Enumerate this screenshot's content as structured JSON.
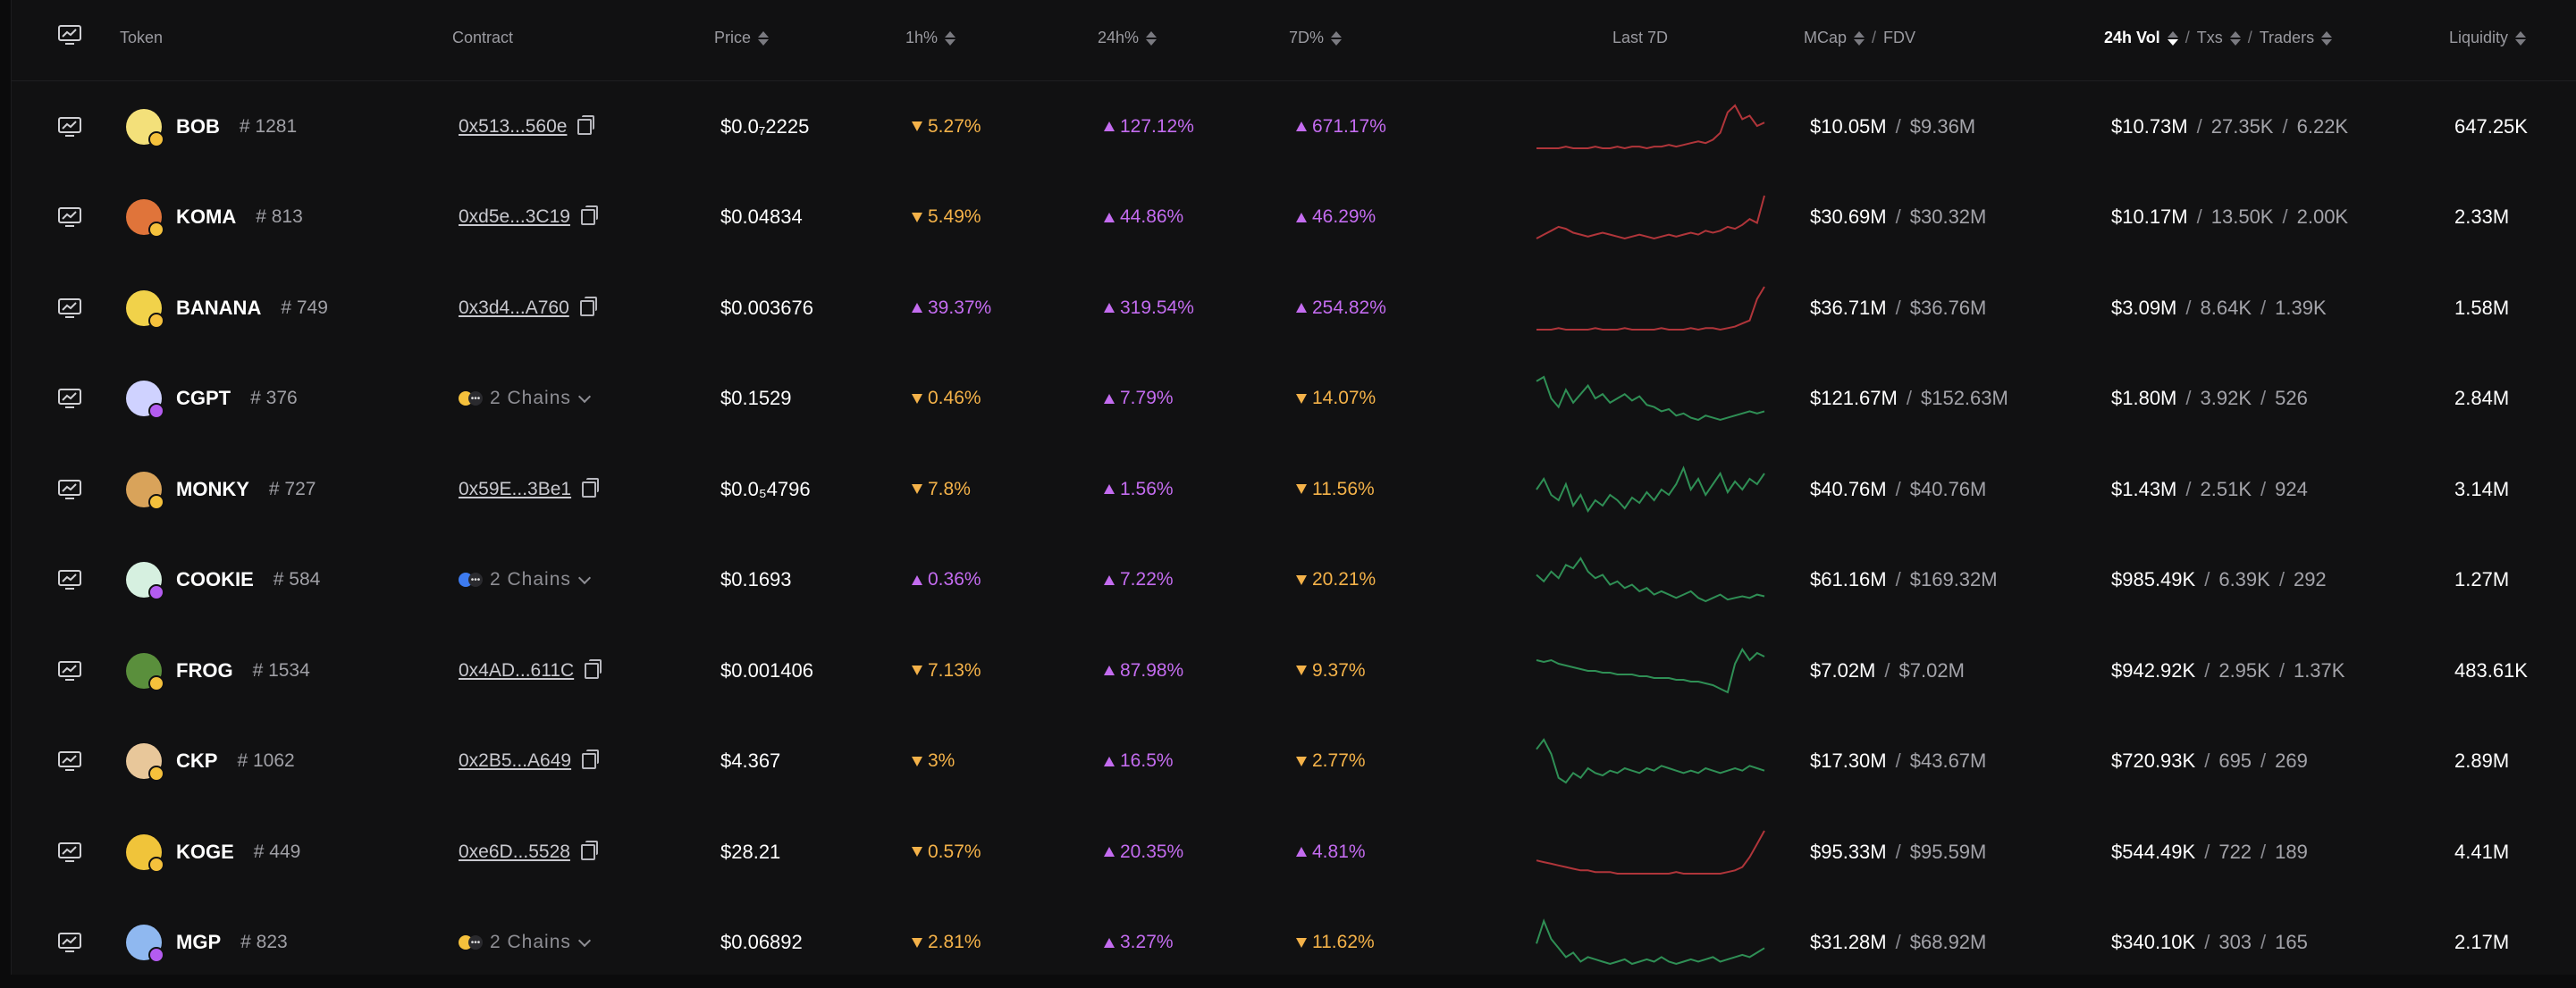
{
  "header": {
    "token": "Token",
    "contract": "Contract",
    "price": "Price",
    "h1": "1h%",
    "h24": "24h%",
    "d7": "7D%",
    "last7d": "Last 7D",
    "mcap": "MCap",
    "fdv": "FDV",
    "vol": "24h Vol",
    "txs": "Txs",
    "traders": "Traders",
    "liquidity": "Liquidity"
  },
  "colors": {
    "up": "#c46cf0",
    "down": "#f4b249",
    "spark_up": "#2f8f55",
    "spark_down": "#b0353a"
  },
  "tokens": [
    {
      "symbol": "BOB",
      "rank": "# 1281",
      "contract": "0x513...560e",
      "price": "$0.0₇2225",
      "h1": "5.27%",
      "h1_dir": "dn",
      "h24": "127.12%",
      "h24_dir": "up",
      "d7": "671.17%",
      "d7_dir": "up",
      "mcap": "$10.05M",
      "fdv": "$9.36M",
      "vol": "$10.73M",
      "txs": "27.35K",
      "traders": "6.22K",
      "liquidity": "647.25K",
      "avatar_color": "#f3e07a",
      "badge_color": "#f5c13c",
      "spark_color": "spark_down",
      "spark": [
        5,
        5,
        5,
        5,
        6,
        5,
        5,
        5,
        6,
        5,
        5,
        6,
        5,
        6,
        6,
        5,
        6,
        6,
        7,
        6,
        7,
        8,
        9,
        8,
        10,
        14,
        26,
        30,
        22,
        24,
        18,
        20
      ]
    },
    {
      "symbol": "KOMA",
      "rank": "# 813",
      "contract": "0xd5e...3C19",
      "price": "$0.04834",
      "h1": "5.49%",
      "h1_dir": "dn",
      "h24": "44.86%",
      "h24_dir": "up",
      "d7": "46.29%",
      "d7_dir": "up",
      "mcap": "$30.69M",
      "fdv": "$30.32M",
      "vol": "$10.17M",
      "txs": "13.50K",
      "traders": "2.00K",
      "liquidity": "2.33M",
      "avatar_color": "#e0743a",
      "badge_color": "#f5c13c",
      "spark_color": "spark_down",
      "spark": [
        8,
        10,
        12,
        14,
        13,
        11,
        10,
        9,
        10,
        11,
        10,
        9,
        8,
        9,
        10,
        9,
        8,
        9,
        10,
        9,
        10,
        11,
        10,
        12,
        11,
        12,
        14,
        13,
        15,
        18,
        16,
        30
      ]
    },
    {
      "symbol": "BANANA",
      "rank": "# 749",
      "contract": "0x3d4...A760",
      "price": "$0.003676",
      "h1": "39.37%",
      "h1_dir": "up",
      "h24": "319.54%",
      "h24_dir": "up",
      "d7": "254.82%",
      "d7_dir": "up",
      "mcap": "$36.71M",
      "fdv": "$36.76M",
      "vol": "$3.09M",
      "txs": "8.64K",
      "traders": "1.39K",
      "liquidity": "1.58M",
      "avatar_color": "#f1d24a",
      "badge_color": "#f5c13c",
      "spark_color": "spark_down",
      "spark": [
        4,
        4,
        4,
        5,
        4,
        4,
        4,
        4,
        5,
        4,
        4,
        4,
        5,
        4,
        4,
        4,
        4,
        5,
        4,
        4,
        4,
        5,
        4,
        5,
        5,
        4,
        5,
        6,
        8,
        10,
        24,
        32
      ]
    },
    {
      "symbol": "CGPT",
      "rank": "# 376",
      "contract": "",
      "chains": "2 Chains",
      "chain_color": "#f5c13c",
      "price": "$0.1529",
      "h1": "0.46%",
      "h1_dir": "dn",
      "h24": "7.79%",
      "h24_dir": "up",
      "d7": "14.07%",
      "d7_dir": "dn",
      "mcap": "$121.67M",
      "fdv": "$152.63M",
      "vol": "$1.80M",
      "txs": "3.92K",
      "traders": "526",
      "liquidity": "2.84M",
      "avatar_color": "#cfd2ff",
      "badge_color": "#b45cf0",
      "spark_color": "spark_up",
      "spark": [
        26,
        28,
        18,
        14,
        22,
        16,
        20,
        24,
        18,
        20,
        16,
        18,
        20,
        17,
        19,
        15,
        14,
        12,
        13,
        10,
        11,
        9,
        8,
        10,
        9,
        8,
        9,
        10,
        11,
        12,
        11,
        12
      ]
    },
    {
      "symbol": "MONKY",
      "rank": "# 727",
      "contract": "0x59E...3Be1",
      "price": "$0.0₅4796",
      "h1": "7.8%",
      "h1_dir": "dn",
      "h24": "1.56%",
      "h24_dir": "up",
      "d7": "11.56%",
      "d7_dir": "dn",
      "mcap": "$40.76M",
      "fdv": "$40.76M",
      "vol": "$1.43M",
      "txs": "2.51K",
      "traders": "924",
      "liquidity": "3.14M",
      "avatar_color": "#d9a35a",
      "badge_color": "#f5c13c",
      "spark_color": "spark_up",
      "spark": [
        16,
        20,
        14,
        12,
        18,
        10,
        14,
        8,
        12,
        10,
        14,
        12,
        9,
        13,
        11,
        15,
        12,
        16,
        14,
        18,
        24,
        16,
        20,
        14,
        18,
        22,
        15,
        19,
        16,
        20,
        18,
        22
      ]
    },
    {
      "symbol": "COOKIE",
      "rank": "# 584",
      "contract": "",
      "chains": "2 Chains",
      "chain_color": "#3d7bf0",
      "price": "$0.1693",
      "h1": "0.36%",
      "h1_dir": "up",
      "h24": "7.22%",
      "h24_dir": "up",
      "d7": "20.21%",
      "d7_dir": "dn",
      "mcap": "$61.16M",
      "fdv": "$169.32M",
      "vol": "$985.49K",
      "txs": "6.39K",
      "traders": "292",
      "liquidity": "1.27M",
      "avatar_color": "#d6f0e0",
      "badge_color": "#b45cf0",
      "spark_color": "spark_up",
      "spark": [
        24,
        20,
        26,
        22,
        30,
        28,
        34,
        26,
        22,
        24,
        18,
        20,
        16,
        18,
        14,
        16,
        12,
        14,
        12,
        10,
        12,
        14,
        10,
        8,
        10,
        12,
        9,
        10,
        11,
        10,
        12,
        11
      ]
    },
    {
      "symbol": "FROG",
      "rank": "# 1534",
      "contract": "0x4AD...611C",
      "price": "$0.001406",
      "h1": "7.13%",
      "h1_dir": "dn",
      "h24": "87.98%",
      "h24_dir": "up",
      "d7": "9.37%",
      "d7_dir": "dn",
      "mcap": "$7.02M",
      "fdv": "$7.02M",
      "vol": "$942.92K",
      "txs": "2.95K",
      "traders": "1.37K",
      "liquidity": "483.61K",
      "avatar_color": "#5a8f3c",
      "badge_color": "#f5c13c",
      "spark_color": "spark_up",
      "spark": [
        22,
        21,
        22,
        20,
        19,
        18,
        17,
        16,
        16,
        15,
        15,
        14,
        14,
        14,
        13,
        13,
        12,
        12,
        12,
        11,
        11,
        10,
        10,
        9,
        8,
        6,
        4,
        20,
        28,
        22,
        26,
        24
      ]
    },
    {
      "symbol": "CKP",
      "rank": "# 1062",
      "contract": "0x2B5...A649",
      "price": "$4.367",
      "h1": "3%",
      "h1_dir": "dn",
      "h24": "16.5%",
      "h24_dir": "up",
      "d7": "2.77%",
      "d7_dir": "dn",
      "mcap": "$17.30M",
      "fdv": "$43.67M",
      "vol": "$720.93K",
      "txs": "695",
      "traders": "269",
      "liquidity": "2.89M",
      "avatar_color": "#e8c79a",
      "badge_color": "#f5c13c",
      "spark_color": "spark_up",
      "spark": [
        22,
        26,
        20,
        10,
        8,
        12,
        10,
        14,
        12,
        11,
        13,
        12,
        14,
        13,
        12,
        14,
        13,
        15,
        14,
        13,
        12,
        13,
        12,
        14,
        13,
        12,
        13,
        14,
        13,
        15,
        14,
        13
      ]
    },
    {
      "symbol": "KOGE",
      "rank": "# 449",
      "contract": "0xe6D...5528",
      "price": "$28.21",
      "h1": "0.57%",
      "h1_dir": "dn",
      "h24": "20.35%",
      "h24_dir": "up",
      "d7": "4.81%",
      "d7_dir": "up",
      "mcap": "$95.33M",
      "fdv": "$95.59M",
      "vol": "$544.49K",
      "txs": "722",
      "traders": "189",
      "liquidity": "4.41M",
      "avatar_color": "#f0c43a",
      "badge_color": "#f5c13c",
      "spark_color": "spark_down",
      "spark": [
        12,
        11,
        10,
        9,
        8,
        7,
        6,
        6,
        5,
        5,
        5,
        4,
        4,
        4,
        4,
        4,
        4,
        4,
        4,
        5,
        4,
        4,
        4,
        4,
        4,
        4,
        5,
        6,
        8,
        14,
        22,
        30
      ]
    },
    {
      "symbol": "MGP",
      "rank": "# 823",
      "contract": "",
      "chains": "2 Chains",
      "chain_color": "#f5c13c",
      "price": "$0.06892",
      "h1": "2.81%",
      "h1_dir": "dn",
      "h24": "3.27%",
      "h24_dir": "up",
      "d7": "11.62%",
      "d7_dir": "dn",
      "mcap": "$31.28M",
      "fdv": "$68.92M",
      "vol": "$340.10K",
      "txs": "303",
      "traders": "165",
      "liquidity": "2.17M",
      "avatar_color": "#8fb8f0",
      "badge_color": "#b45cf0",
      "spark_color": "spark_up",
      "spark": [
        18,
        28,
        20,
        16,
        12,
        14,
        10,
        12,
        11,
        10,
        9,
        10,
        11,
        9,
        10,
        11,
        10,
        12,
        10,
        9,
        10,
        11,
        10,
        11,
        12,
        10,
        11,
        12,
        13,
        12,
        14,
        16
      ]
    }
  ]
}
